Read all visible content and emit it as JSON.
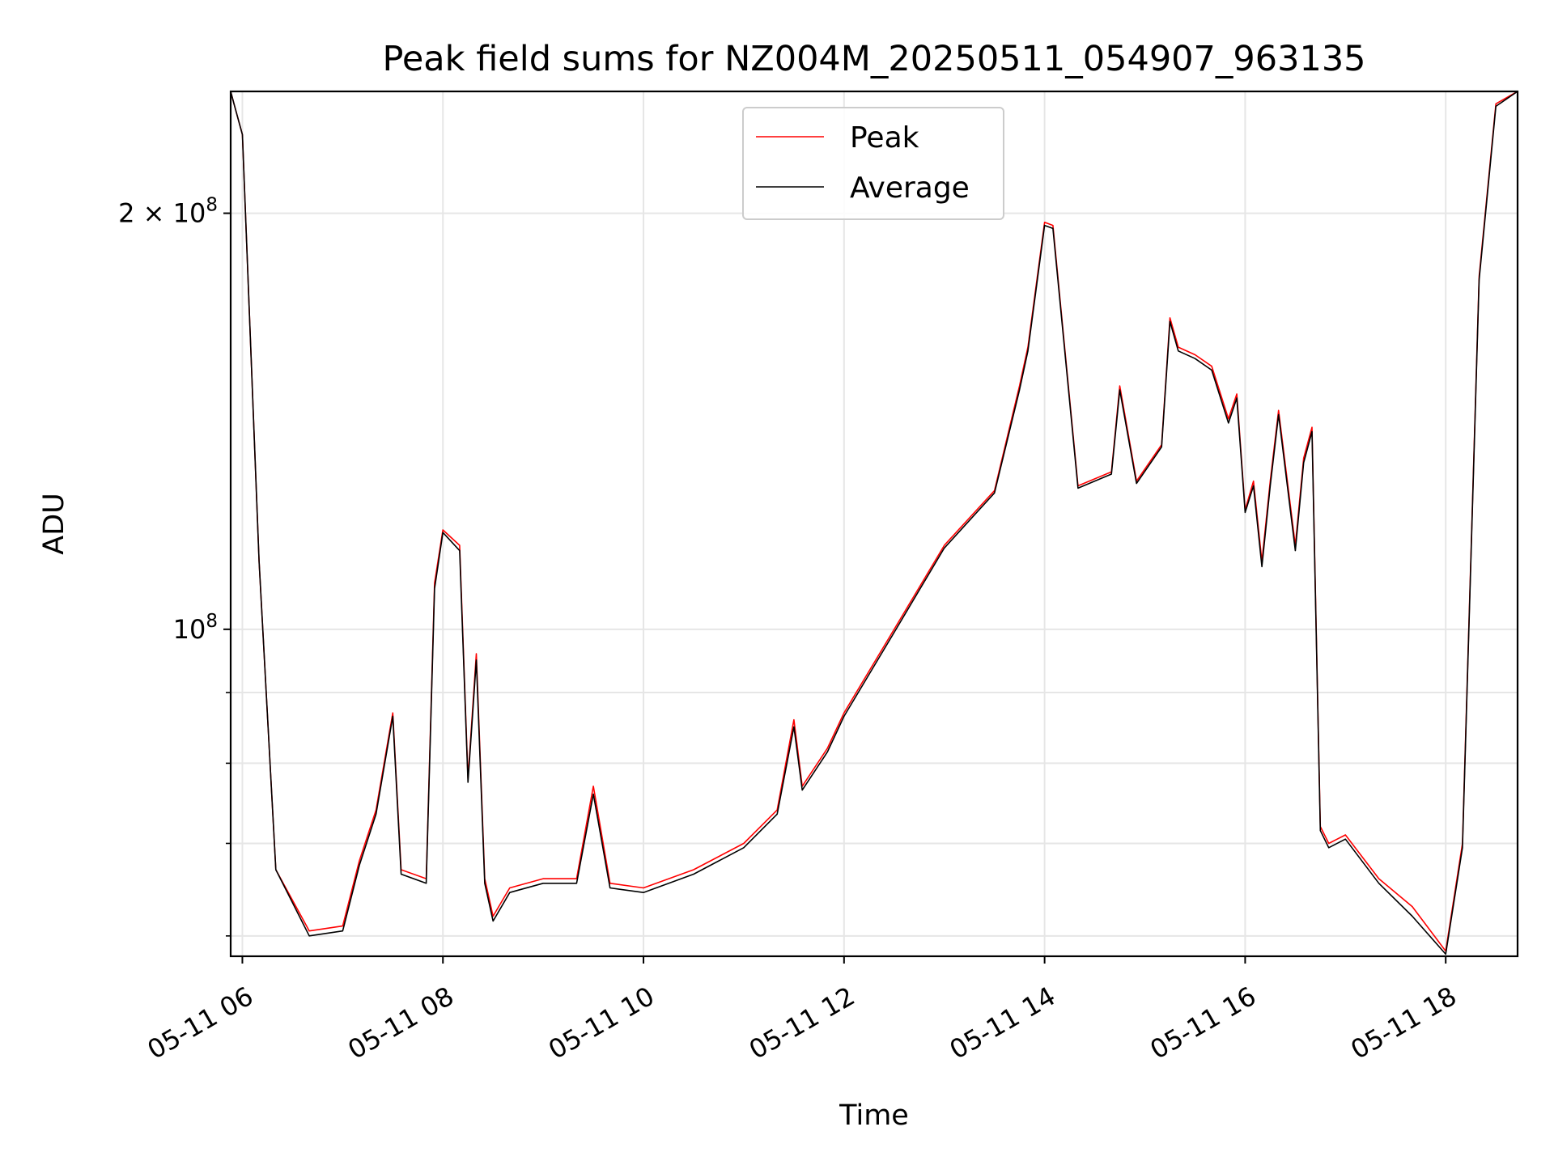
{
  "chart_data": {
    "type": "line",
    "title": "Peak field sums for NZ004M_20250511_054907_963135",
    "xlabel": "Time",
    "ylabel": "ADU",
    "x_scale": "time",
    "y_scale": "log",
    "x_range": [
      "05-11 05:53",
      "05-11 18:43"
    ],
    "ylim": [
      58000000,
      245000000
    ],
    "x_ticks": [
      "05-11 06",
      "05-11 08",
      "05-11 10",
      "05-11 12",
      "05-11 14",
      "05-11 16",
      "05-11 18"
    ],
    "y_ticks": [
      {
        "label_base": "10",
        "label_exp": "8",
        "prefix": ""
      },
      {
        "label_base": "10",
        "label_exp": "8",
        "prefix": "2 × "
      }
    ],
    "grid": true,
    "legend": {
      "placement": "upper center",
      "entries": [
        "Peak",
        "Average"
      ]
    },
    "x": [
      "05:53",
      "05:55",
      "06:00",
      "06:10",
      "06:20",
      "06:40",
      "07:00",
      "07:10",
      "07:20",
      "07:30",
      "07:35",
      "07:50",
      "07:55",
      "08:00",
      "08:10",
      "08:15",
      "08:20",
      "08:25",
      "08:30",
      "08:40",
      "09:00",
      "09:20",
      "09:30",
      "09:40",
      "10:00",
      "10:30",
      "11:00",
      "11:20",
      "11:30",
      "11:35",
      "11:50",
      "12:00",
      "12:30",
      "13:00",
      "13:30",
      "13:45",
      "13:50",
      "14:00",
      "14:05",
      "14:20",
      "14:40",
      "14:45",
      "14:55",
      "15:10",
      "15:15",
      "15:20",
      "15:30",
      "15:40",
      "15:50",
      "15:55",
      "16:00",
      "16:05",
      "16:10",
      "16:15",
      "16:20",
      "16:30",
      "16:35",
      "16:40",
      "16:45",
      "16:50",
      "17:00",
      "17:20",
      "17:40",
      "18:00",
      "18:10",
      "18:20",
      "18:30",
      "18:43"
    ],
    "series": [
      {
        "name": "Peak",
        "color": "#ff0000",
        "values": [
          245000000,
          240000000,
          228000000,
          112000000,
          67000000,
          60500000,
          61000000,
          68000000,
          74000000,
          87000000,
          67000000,
          66000000,
          108000000,
          118000000,
          115000000,
          78000000,
          96000000,
          66000000,
          62000000,
          65000000,
          66000000,
          66000000,
          77000000,
          65500000,
          65000000,
          67000000,
          70000000,
          74000000,
          86000000,
          77000000,
          82000000,
          87000000,
          100000000,
          115000000,
          126000000,
          150000000,
          160000000,
          197000000,
          196000000,
          127000000,
          130000000,
          150000000,
          128000000,
          136000000,
          168000000,
          160000000,
          158000000,
          155000000,
          142000000,
          148000000,
          122000000,
          128000000,
          112000000,
          128000000,
          144000000,
          115000000,
          133000000,
          140000000,
          72000000,
          70000000,
          71000000,
          66000000,
          63000000,
          58500000,
          70000000,
          180000000,
          240000000,
          245000000
        ]
      },
      {
        "name": "Average",
        "color": "#000000",
        "values": [
          245000000,
          240000000,
          228000000,
          112000000,
          67000000,
          60000000,
          60500000,
          67500000,
          73500000,
          86500000,
          66500000,
          65500000,
          107000000,
          117500000,
          114000000,
          77500000,
          95000000,
          65500000,
          61500000,
          64500000,
          65500000,
          65500000,
          76000000,
          65000000,
          64500000,
          66500000,
          69500000,
          73500000,
          85000000,
          76500000,
          81500000,
          86500000,
          99500000,
          114500000,
          125500000,
          149000000,
          159000000,
          196000000,
          195000000,
          126500000,
          129500000,
          149000000,
          127500000,
          135500000,
          167000000,
          159000000,
          157000000,
          154000000,
          141000000,
          147000000,
          121500000,
          127000000,
          111000000,
          127000000,
          143000000,
          114000000,
          132000000,
          139000000,
          71500000,
          69500000,
          70500000,
          65500000,
          62000000,
          58200000,
          69500000,
          179000000,
          239000000,
          245000000
        ]
      }
    ]
  }
}
